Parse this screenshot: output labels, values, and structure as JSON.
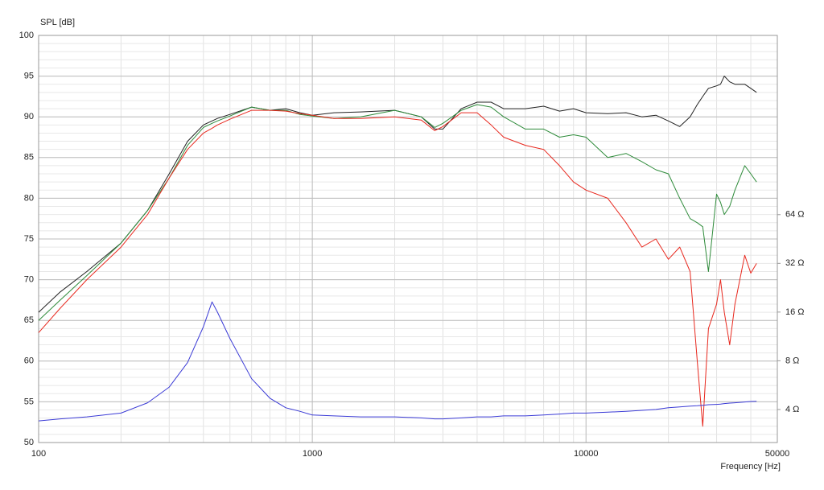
{
  "chart_data": {
    "type": "line",
    "y_label": "SPL [dB]",
    "x_label": "Frequency [Hz]",
    "xscale": "log",
    "xlim": [
      100,
      50000
    ],
    "xticks": [
      100,
      1000,
      10000,
      50000
    ],
    "ylim": [
      50,
      100
    ],
    "yticks": [
      50,
      55,
      60,
      65,
      70,
      75,
      80,
      85,
      90,
      95,
      100
    ],
    "y2scale": "log",
    "y2lim": [
      2.5,
      820
    ],
    "y2ticks": [
      {
        "value": 4,
        "label": "4 Ω"
      },
      {
        "value": 8,
        "label": "8 Ω"
      },
      {
        "value": 16,
        "label": "16 Ω"
      },
      {
        "value": 32,
        "label": "32 Ω"
      },
      {
        "value": 64,
        "label": "64 Ω"
      }
    ],
    "grid": true,
    "x": [
      100,
      120,
      150,
      200,
      250,
      300,
      350,
      400,
      430,
      450,
      500,
      600,
      700,
      800,
      900,
      1000,
      1200,
      1500,
      2000,
      2500,
      2800,
      3000,
      3500,
      4000,
      4500,
      5000,
      6000,
      7000,
      8000,
      9000,
      10000,
      12000,
      14000,
      16000,
      18000,
      20000,
      22000,
      24000,
      25500,
      26700,
      28000,
      30000,
      31000,
      32000,
      33500,
      35000,
      38000,
      40000,
      42000
    ],
    "series": [
      {
        "color": "#222222",
        "values": [
          66,
          68.5,
          71,
          74.5,
          78.5,
          83,
          87,
          89,
          89.5,
          89.8,
          90.3,
          91.2,
          90.8,
          91,
          90.5,
          90.2,
          90.5,
          90.6,
          90.8,
          90,
          88.5,
          88.5,
          91,
          91.8,
          91.8,
          91,
          91,
          91.3,
          90.7,
          91,
          90.5,
          90.4,
          90.5,
          90,
          90.2,
          89.5,
          88.8,
          90,
          91.5,
          92.5,
          93.5,
          93.8,
          94,
          95,
          94.3,
          94,
          94,
          93.5,
          93
        ]
      },
      {
        "color": "#2e8b3a",
        "values": [
          65,
          67.5,
          70.5,
          74.5,
          78.5,
          82.5,
          86.5,
          88.7,
          89.2,
          89.5,
          90.1,
          91.2,
          90.8,
          90.8,
          90.3,
          90.1,
          89.8,
          90,
          90.8,
          90,
          88.7,
          89.2,
          90.8,
          91.5,
          91.2,
          90,
          88.5,
          88.5,
          87.5,
          87.8,
          87.5,
          85,
          85.5,
          84.5,
          83.5,
          83,
          80,
          77.5,
          77,
          76.5,
          71,
          80.5,
          79.5,
          78,
          79,
          81,
          84,
          83,
          82
        ]
      },
      {
        "color": "#e8281e",
        "values": [
          63.5,
          66.5,
          70,
          74,
          78,
          82.5,
          86,
          88,
          88.6,
          89,
          89.7,
          90.8,
          90.8,
          90.7,
          90.4,
          90.2,
          89.8,
          89.8,
          90,
          89.6,
          88.3,
          88.8,
          90.5,
          90.5,
          89,
          87.5,
          86.5,
          86,
          84,
          82,
          81,
          80,
          77,
          74,
          75,
          72.5,
          74,
          71,
          60,
          52,
          64,
          67,
          70,
          66,
          62,
          67,
          73,
          70.8,
          72
        ]
      },
      {
        "color": "#3b3bd6",
        "axis": "y2",
        "values": [
          3.4,
          3.5,
          3.6,
          3.8,
          4.4,
          5.5,
          7.8,
          13,
          18.5,
          16,
          11,
          6.2,
          4.7,
          4.1,
          3.9,
          3.7,
          3.65,
          3.6,
          3.6,
          3.55,
          3.5,
          3.5,
          3.55,
          3.6,
          3.6,
          3.65,
          3.65,
          3.7,
          3.75,
          3.8,
          3.8,
          3.85,
          3.9,
          3.95,
          4,
          4.1,
          4.15,
          4.2,
          4.22,
          4.25,
          4.28,
          4.3,
          4.32,
          4.35,
          4.38,
          4.4,
          4.45,
          4.48,
          4.5
        ]
      }
    ]
  }
}
